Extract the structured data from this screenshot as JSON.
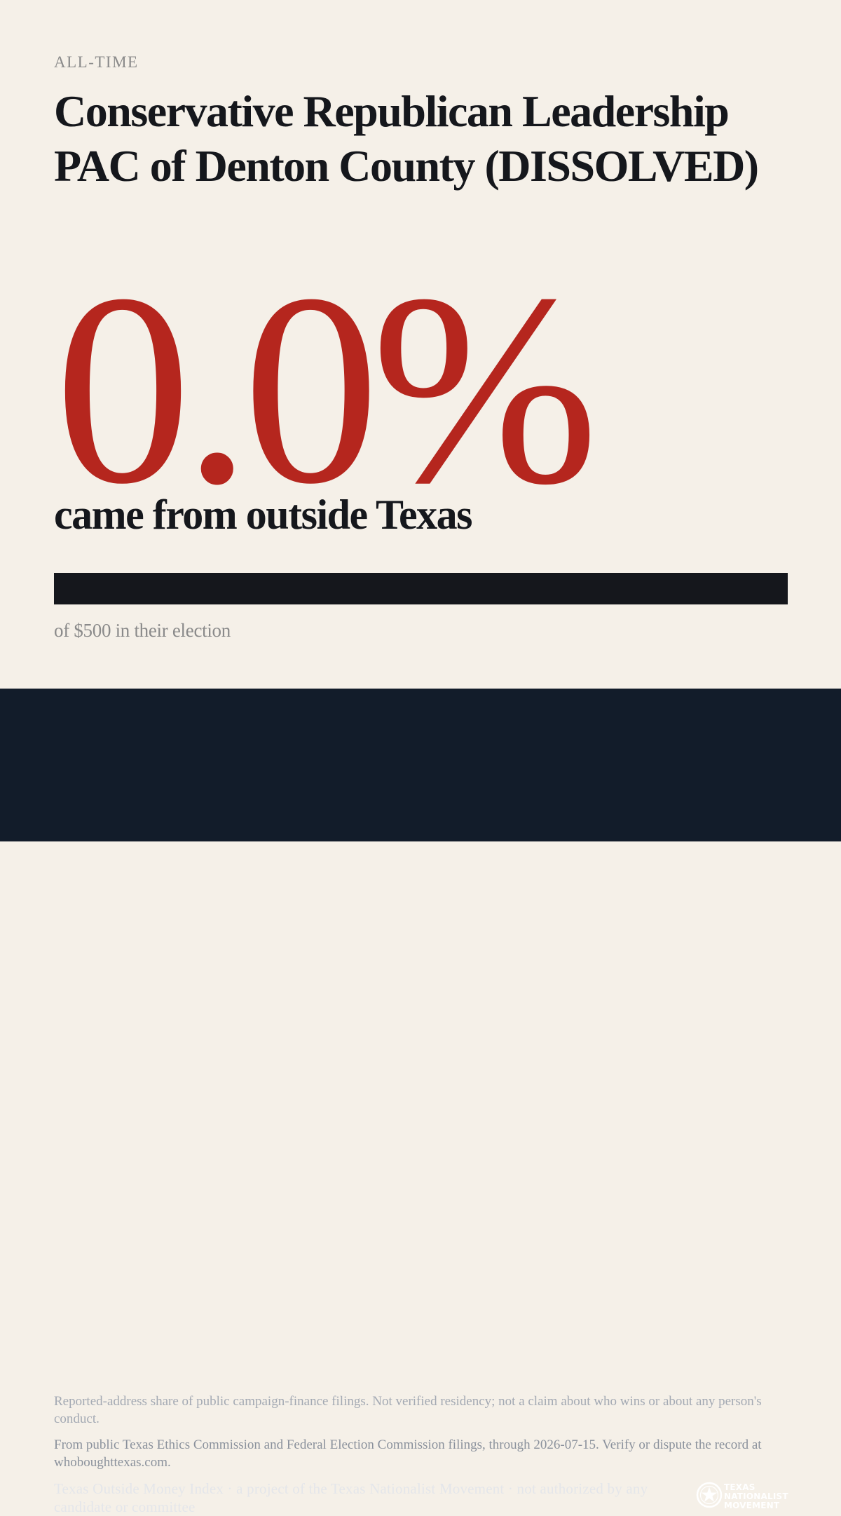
{
  "header": {
    "eyebrow": "ALL-TIME",
    "title": "Conservative Republican Leadership PAC of Denton County (DISSOLVED)"
  },
  "stat": {
    "percent_label": "0.0%",
    "percent_value": 0.0,
    "caption": "came from outside Texas"
  },
  "bar": {
    "fill_fraction": 0.0,
    "total_label": "of $500 in their election"
  },
  "footer": {
    "disclaimer": "Reported-address share of public campaign-finance filings. Not verified residency; not a claim about who wins or about any person's conduct.",
    "source": "From public Texas Ethics Commission and Federal Election Commission filings, through 2026-07-15. Verify or dispute the record at whoboughttexas.com.",
    "credit": "Texas Outside Money Index · a project of the Texas Nationalist Movement · not authorized by any candidate or committee"
  },
  "logo": {
    "icon": "star-seal-icon",
    "line1": "TEXAS",
    "line2": "NATIONALIST",
    "line3": "MOVEMENT"
  },
  "colors": {
    "background": "#f5f0e8",
    "accent": "#b5261e",
    "ink": "#15171c",
    "footer_bg": "#121c2a"
  }
}
